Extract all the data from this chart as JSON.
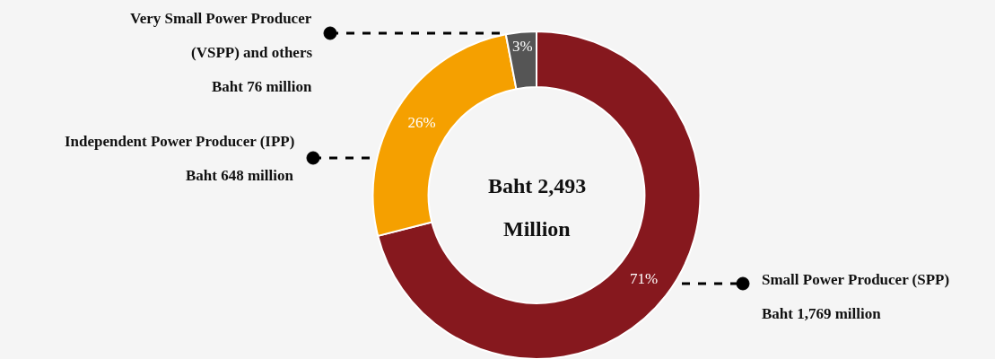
{
  "chart_data": {
    "type": "donut",
    "categories": [
      "Small Power Producer (SPP)\nBaht 1,769 million",
      "Independent Power Producer (IPP)\nBaht 648 million",
      "Very Small Power Producer\n(VSPP) and others\nBaht 76 million"
    ],
    "values": [
      71,
      26,
      3
    ],
    "colors": [
      "#86181e",
      "#f5a000",
      "#555555"
    ],
    "value_labels": [
      "71%",
      "26%",
      "3%"
    ],
    "annotations": [
      "Baht 2,493\nMillion"
    ],
    "legend": false
  }
}
